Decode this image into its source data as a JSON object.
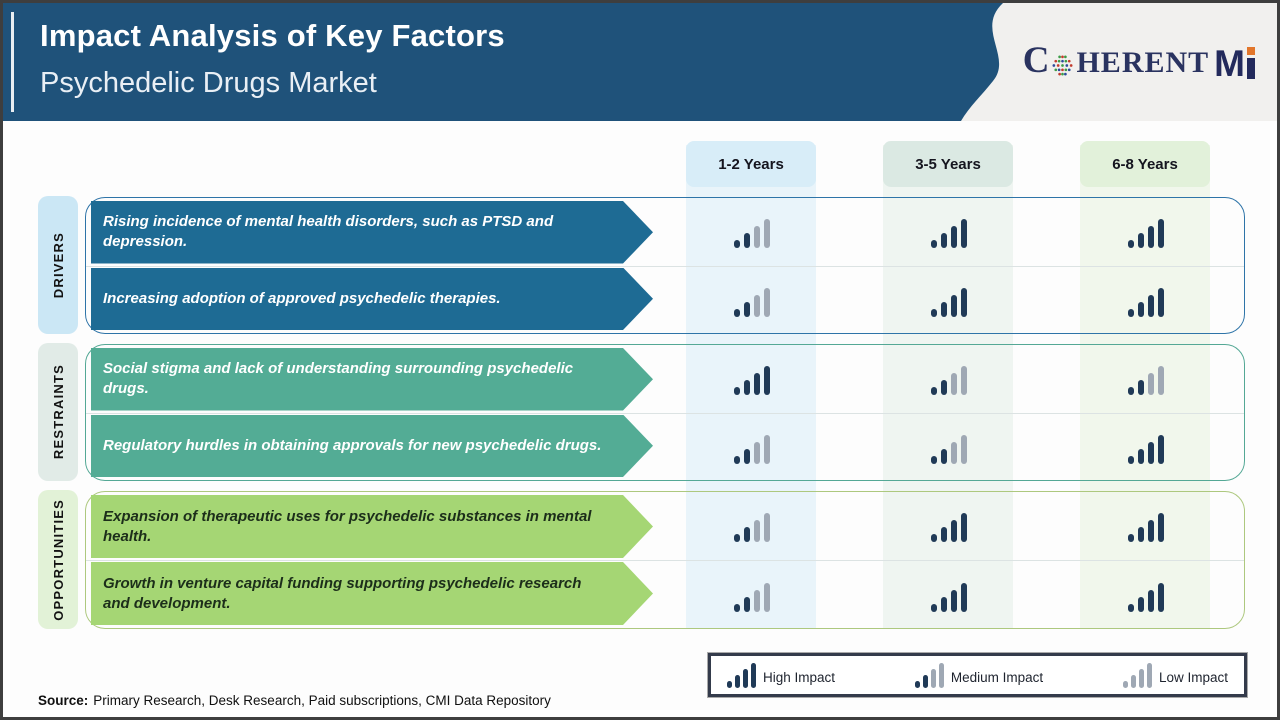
{
  "header": {
    "title": "Impact Analysis of Key Factors",
    "subtitle": "Psychedelic Drugs Market",
    "logo": {
      "part1": "C",
      "part2": "HERENT",
      "part3": "M"
    }
  },
  "columns": [
    {
      "label": "1-2 Years"
    },
    {
      "label": "3-5 Years"
    },
    {
      "label": "6-8 Years"
    }
  ],
  "sections": [
    {
      "label": "DRIVERS",
      "rows": [
        {
          "text": "Rising incidence of mental health disorders, such as PTSD and depression.",
          "impacts": [
            "medium",
            "high",
            "high"
          ]
        },
        {
          "text": "Increasing adoption of approved psychedelic therapies.",
          "impacts": [
            "medium",
            "high",
            "high"
          ]
        }
      ]
    },
    {
      "label": "RESTRAINTS",
      "rows": [
        {
          "text": "Social stigma and lack of understanding surrounding psychedelic drugs.",
          "impacts": [
            "high",
            "medium",
            "medium"
          ]
        },
        {
          "text": "Regulatory hurdles in obtaining approvals for new psychedelic drugs.",
          "impacts": [
            "medium",
            "medium",
            "high"
          ]
        }
      ]
    },
    {
      "label": "OPPORTUNITIES",
      "rows": [
        {
          "text": "Expansion of therapeutic uses for psychedelic substances in mental health.",
          "impacts": [
            "medium",
            "high",
            "high"
          ]
        },
        {
          "text": "Growth in venture capital funding supporting psychedelic research and development.",
          "impacts": [
            "medium",
            "high",
            "high"
          ]
        }
      ]
    }
  ],
  "legend": {
    "items": [
      {
        "label": "High Impact",
        "level": "high"
      },
      {
        "label": "Medium Impact",
        "level": "medium"
      },
      {
        "label": "Low Impact",
        "level": "low"
      }
    ]
  },
  "source": {
    "label": "Source:",
    "text": "Primary Research, Desk Research, Paid subscriptions, CMI Data Repository"
  },
  "colors": {
    "header_bg": "#1F527A",
    "driver_arrow": "#1E6B94",
    "restraint_arrow": "#53AC95",
    "opportunity_arrow": "#A5D674",
    "impact_dark": "#203A57",
    "impact_gray": "#9FA8B4",
    "tab_1_2_years": "#D8EDF8",
    "tab_3_5_years": "#DBE9E3",
    "tab_6_8_years": "#E2F1DA",
    "logo_navy": "#232A5C",
    "logo_orange": "#E2762B"
  }
}
